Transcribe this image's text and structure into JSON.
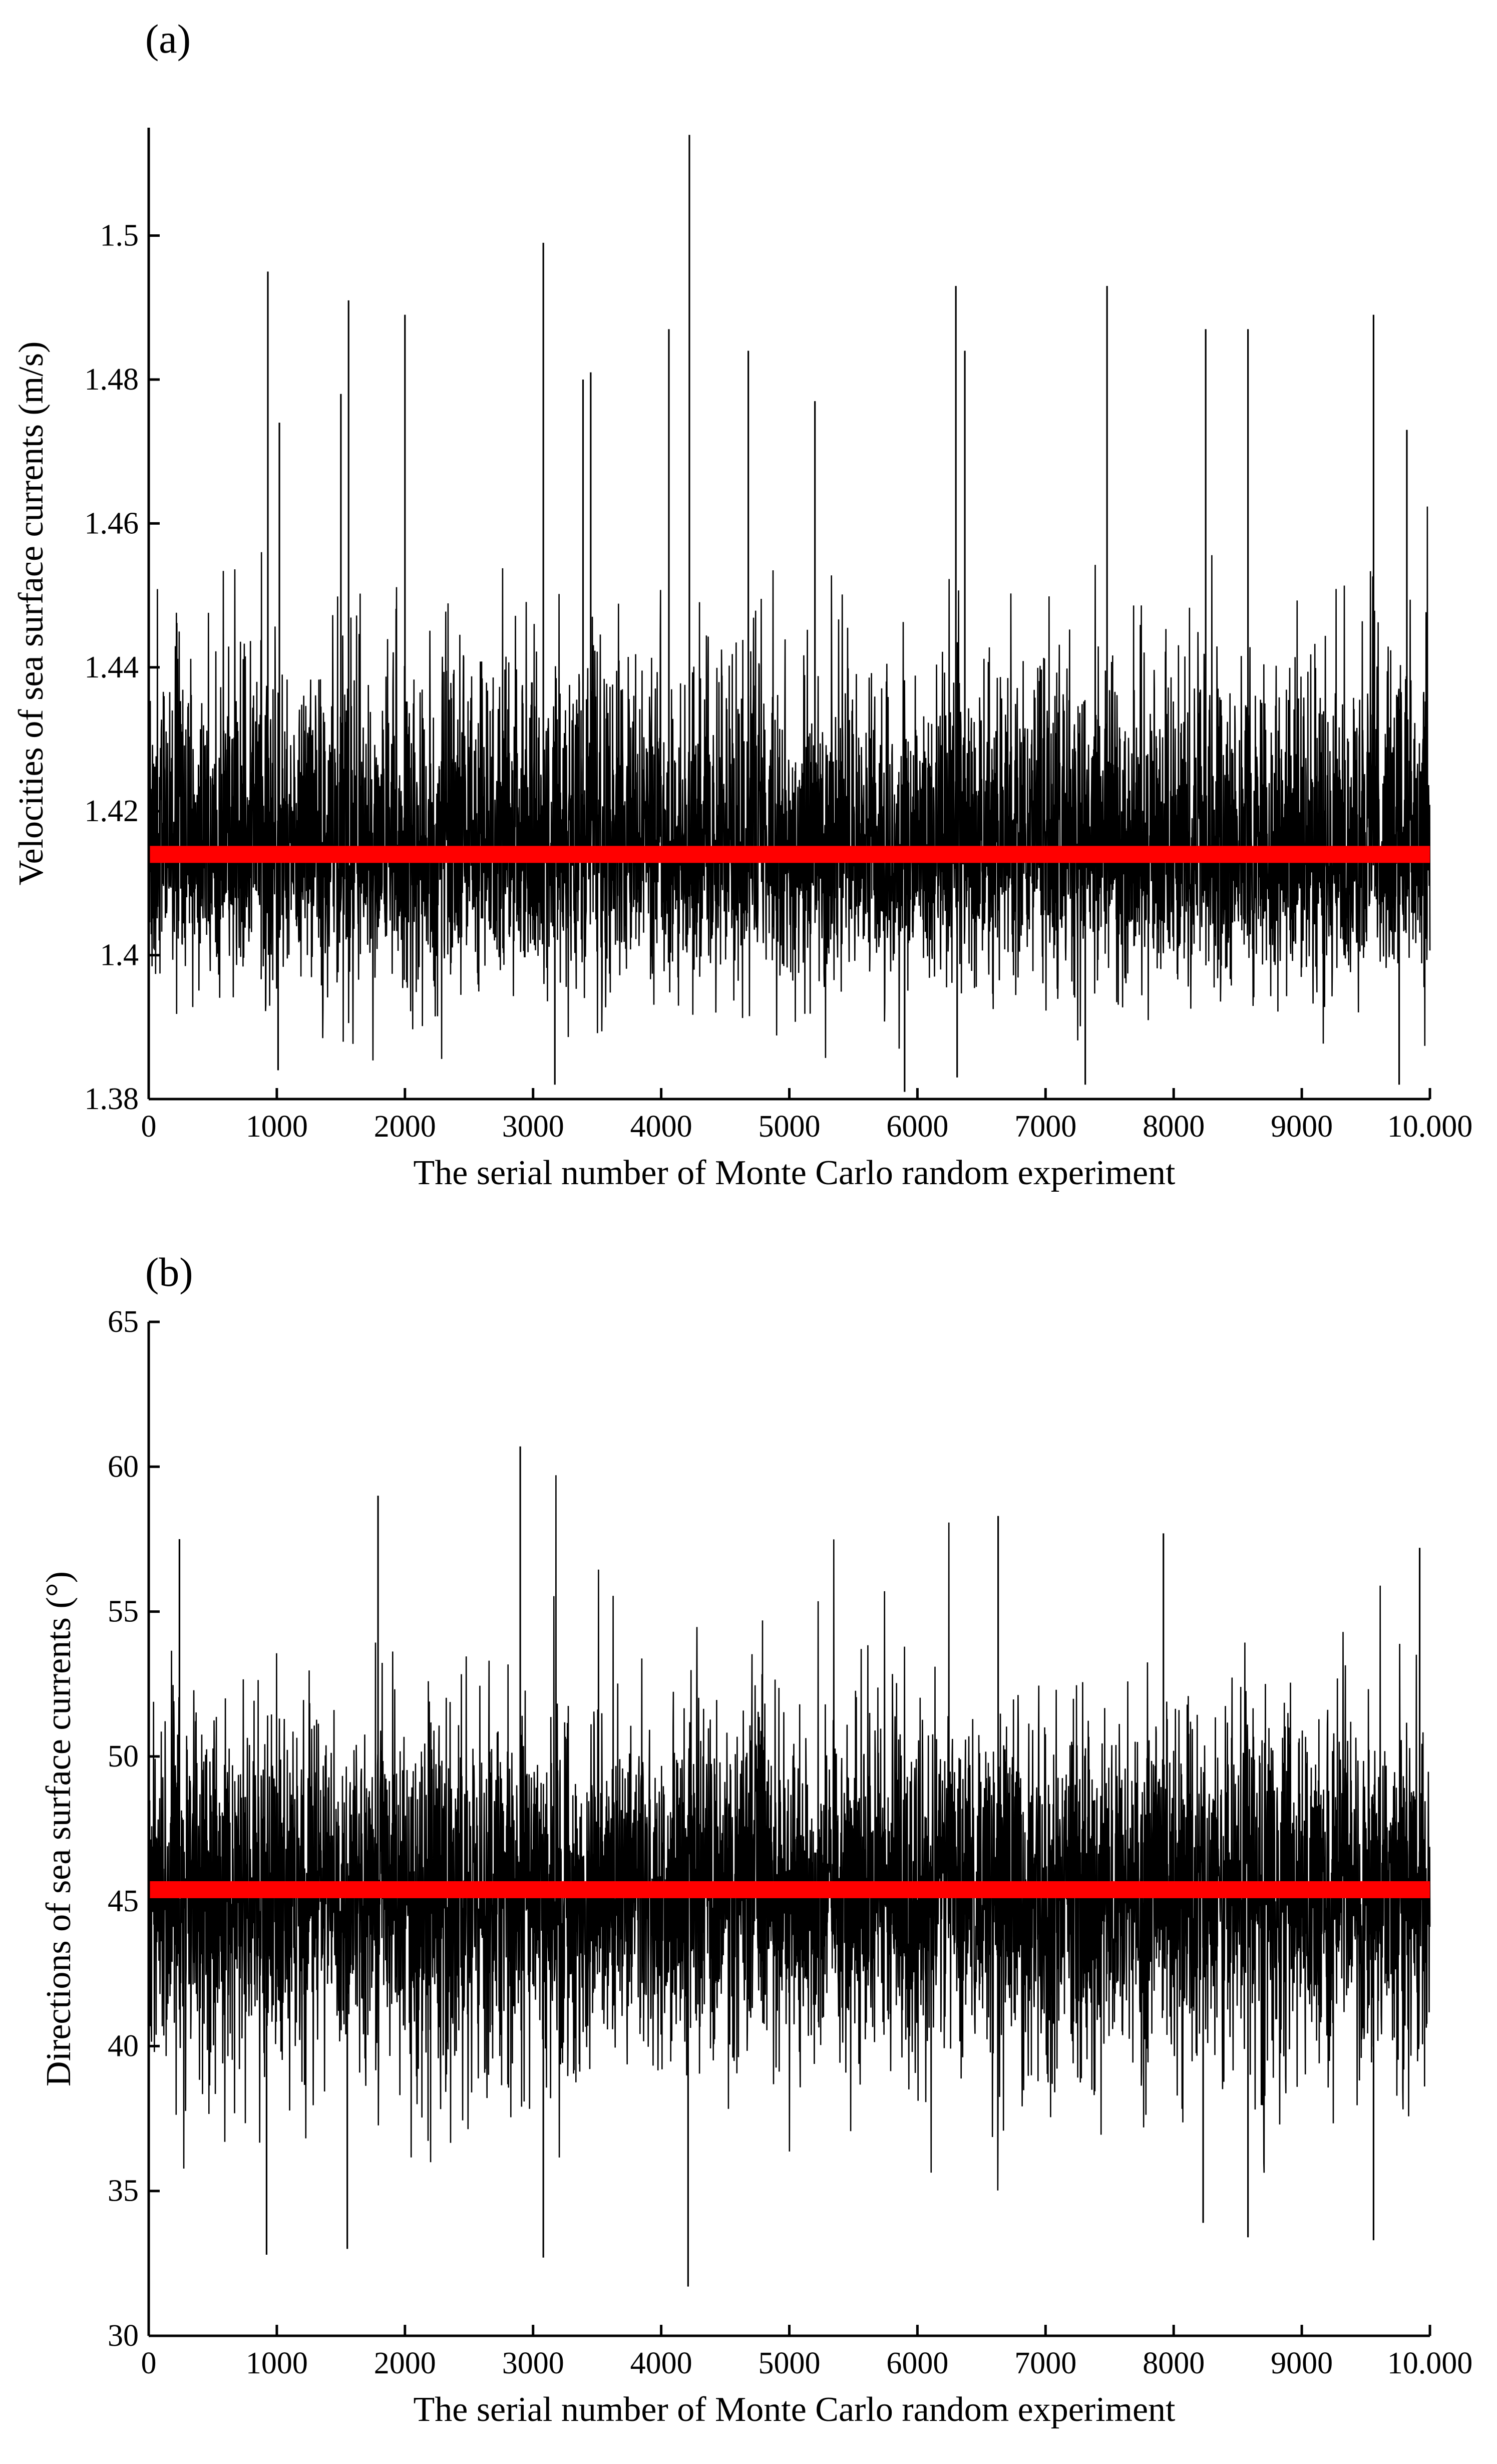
{
  "chart_data": [
    {
      "panel_label": "(a)",
      "type": "line",
      "xlabel": "The serial number of Monte Carlo random experiment",
      "ylabel": "Velocities of sea surface currents (m/s)",
      "xlim": [
        0,
        10000
      ],
      "ylim": [
        1.38,
        1.515
      ],
      "xticks": [
        "0",
        "1000",
        "2000",
        "3000",
        "4000",
        "5000",
        "6000",
        "7000",
        "8000",
        "9000",
        "10.000"
      ],
      "yticks": [
        "1.38",
        "1.4",
        "1.42",
        "1.44",
        "1.46",
        "1.48",
        "1.5"
      ],
      "grid": false,
      "series": [
        {
          "style": "noise",
          "color": "#000000",
          "n_points": 10000,
          "center": 1.414,
          "typical_range": [
            1.395,
            1.445
          ],
          "min": 1.381,
          "max": 1.514,
          "spikes": [
            {
              "x": 930,
              "y": 1.495
            },
            {
              "x": 1020,
              "y": 1.474
            },
            {
              "x": 1500,
              "y": 1.478
            },
            {
              "x": 1560,
              "y": 1.491
            },
            {
              "x": 2000,
              "y": 1.489
            },
            {
              "x": 3080,
              "y": 1.499
            },
            {
              "x": 3390,
              "y": 1.48
            },
            {
              "x": 3450,
              "y": 1.481
            },
            {
              "x": 4060,
              "y": 1.487
            },
            {
              "x": 4220,
              "y": 1.514
            },
            {
              "x": 4680,
              "y": 1.484
            },
            {
              "x": 5200,
              "y": 1.477
            },
            {
              "x": 6300,
              "y": 1.493
            },
            {
              "x": 6370,
              "y": 1.484
            },
            {
              "x": 7480,
              "y": 1.493
            },
            {
              "x": 8250,
              "y": 1.487
            },
            {
              "x": 8580,
              "y": 1.487
            },
            {
              "x": 9560,
              "y": 1.489
            },
            {
              "x": 9820,
              "y": 1.473
            },
            {
              "x": 1010,
              "y": 1.384
            },
            {
              "x": 3170,
              "y": 1.382
            },
            {
              "x": 5900,
              "y": 1.381
            },
            {
              "x": 6310,
              "y": 1.383
            },
            {
              "x": 7310,
              "y": 1.382
            },
            {
              "x": 9760,
              "y": 1.382
            }
          ]
        },
        {
          "style": "mean-line",
          "color": "#ff0000",
          "y": 1.414
        }
      ]
    },
    {
      "panel_label": "(b)",
      "type": "line",
      "xlabel": "The serial number of Monte Carlo random experiment",
      "ylabel": "Directions of sea surface currents (°)",
      "xlim": [
        0,
        10000
      ],
      "ylim": [
        30,
        65
      ],
      "xticks": [
        "0",
        "1000",
        "2000",
        "3000",
        "4000",
        "5000",
        "6000",
        "7000",
        "8000",
        "9000",
        "10.000"
      ],
      "yticks": [
        "30",
        "35",
        "40",
        "45",
        "50",
        "55",
        "60",
        "65"
      ],
      "grid": false,
      "series": [
        {
          "style": "noise",
          "color": "#000000",
          "n_points": 10000,
          "center": 45.3,
          "typical_range": [
            38.5,
            52
          ],
          "min": 31.7,
          "max": 60.7,
          "spikes": [
            {
              "x": 240,
              "y": 57.5
            },
            {
              "x": 1790,
              "y": 59
            },
            {
              "x": 2900,
              "y": 60.7
            },
            {
              "x": 6630,
              "y": 58.3
            },
            {
              "x": 7920,
              "y": 57.7
            },
            {
              "x": 9920,
              "y": 57.2
            },
            {
              "x": 920,
              "y": 32.8
            },
            {
              "x": 1550,
              "y": 33
            },
            {
              "x": 3080,
              "y": 32.7
            },
            {
              "x": 4210,
              "y": 31.7
            },
            {
              "x": 8230,
              "y": 33.9
            },
            {
              "x": 8580,
              "y": 33.4
            },
            {
              "x": 9560,
              "y": 33.3
            }
          ]
        },
        {
          "style": "mean-line",
          "color": "#ff0000",
          "y": 45.4
        }
      ]
    }
  ]
}
